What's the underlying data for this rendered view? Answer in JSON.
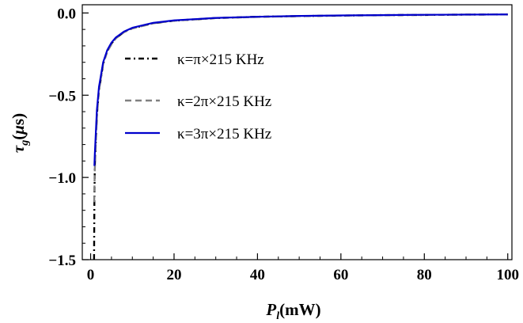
{
  "chart_data": {
    "type": "line",
    "xlabel": "P_l(mW)",
    "ylabel": "τ_g(μs)",
    "xlim": [
      -2,
      101
    ],
    "ylim": [
      -1.5,
      0.05
    ],
    "x_ticks": [
      "0",
      "20",
      "40",
      "60",
      "80",
      "100"
    ],
    "y_ticks": [
      "0.0",
      "−0.5",
      "−1.0",
      "−1.5"
    ],
    "legend_position": "upper-left",
    "grid": false,
    "series": [
      {
        "name": "κ=π×215 KHz",
        "color": "#000000",
        "style": "dash-dot",
        "points": [
          [
            0.82,
            -1.5
          ],
          [
            0.9,
            -1.15
          ],
          [
            1.0,
            -0.93
          ],
          [
            1.5,
            -0.62
          ],
          [
            2,
            -0.47
          ],
          [
            3,
            -0.31
          ],
          [
            4,
            -0.23
          ],
          [
            5,
            -0.185
          ],
          [
            6,
            -0.155
          ],
          [
            8,
            -0.115
          ],
          [
            10,
            -0.093
          ],
          [
            15,
            -0.062
          ],
          [
            20,
            -0.047
          ],
          [
            30,
            -0.031
          ],
          [
            40,
            -0.023
          ],
          [
            50,
            -0.019
          ],
          [
            60,
            -0.016
          ],
          [
            70,
            -0.013
          ],
          [
            80,
            -0.012
          ],
          [
            90,
            -0.01
          ],
          [
            100,
            -0.009
          ]
        ]
      },
      {
        "name": "κ=2π×215 KHz",
        "color": "#808080",
        "style": "dashed",
        "points": [
          [
            0.85,
            -1.15
          ],
          [
            1.0,
            -0.95
          ],
          [
            1.5,
            -0.63
          ],
          [
            2,
            -0.47
          ],
          [
            3,
            -0.31
          ],
          [
            4,
            -0.235
          ],
          [
            5,
            -0.19
          ],
          [
            6,
            -0.155
          ],
          [
            8,
            -0.117
          ],
          [
            10,
            -0.094
          ],
          [
            15,
            -0.063
          ],
          [
            20,
            -0.047
          ],
          [
            30,
            -0.031
          ],
          [
            40,
            -0.024
          ],
          [
            50,
            -0.019
          ],
          [
            60,
            -0.016
          ],
          [
            70,
            -0.013
          ],
          [
            80,
            -0.012
          ],
          [
            90,
            -0.01
          ],
          [
            100,
            -0.009
          ]
        ]
      },
      {
        "name": "κ=3π×215 KHz",
        "color": "#0000cc",
        "style": "solid",
        "points": [
          [
            0.9,
            -0.93
          ],
          [
            1.0,
            -0.86
          ],
          [
            1.5,
            -0.59
          ],
          [
            2,
            -0.45
          ],
          [
            3,
            -0.3
          ],
          [
            4,
            -0.225
          ],
          [
            5,
            -0.18
          ],
          [
            6,
            -0.15
          ],
          [
            8,
            -0.113
          ],
          [
            10,
            -0.09
          ],
          [
            15,
            -0.06
          ],
          [
            20,
            -0.045
          ],
          [
            30,
            -0.03
          ],
          [
            40,
            -0.023
          ],
          [
            50,
            -0.018
          ],
          [
            60,
            -0.015
          ],
          [
            70,
            -0.013
          ],
          [
            80,
            -0.011
          ],
          [
            90,
            -0.01
          ],
          [
            100,
            -0.009
          ]
        ]
      }
    ]
  }
}
